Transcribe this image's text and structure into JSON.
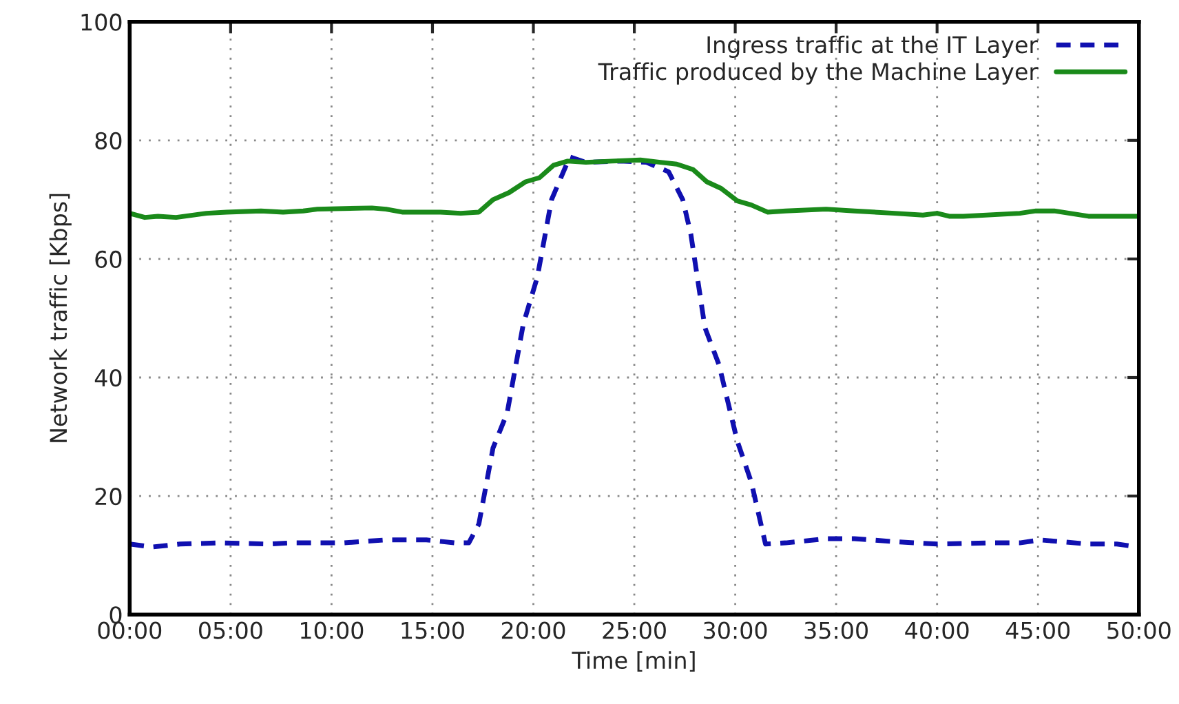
{
  "chart_data": {
    "type": "line",
    "xlabel": "Time [min]",
    "ylabel": "Network traffic [Kbps]",
    "xlim": [
      0,
      50
    ],
    "ylim": [
      0,
      100
    ],
    "xticks": [
      {
        "value": 0,
        "label": "00:00"
      },
      {
        "value": 5,
        "label": "05:00"
      },
      {
        "value": 10,
        "label": "10:00"
      },
      {
        "value": 15,
        "label": "15:00"
      },
      {
        "value": 20,
        "label": "20:00"
      },
      {
        "value": 25,
        "label": "25:00"
      },
      {
        "value": 30,
        "label": "30:00"
      },
      {
        "value": 35,
        "label": "35:00"
      },
      {
        "value": 40,
        "label": "40:00"
      },
      {
        "value": 45,
        "label": "45:00"
      },
      {
        "value": 50,
        "label": "50:00"
      }
    ],
    "yticks": [
      0,
      20,
      40,
      60,
      80,
      100
    ],
    "grid": true,
    "legend": "top right",
    "marker": "none",
    "series": [
      {
        "name": "Ingress traffic at the IT Layer",
        "color": "#1010b0",
        "line_style": "dashed",
        "x": [
          0,
          1.1,
          2.5,
          4.5,
          6.9,
          8,
          10.6,
          12.7,
          14.7,
          16.1,
          16.8,
          17.3,
          18,
          18.7,
          19.5,
          20.2,
          20.9,
          21.8,
          22.6,
          24.3,
          25.6,
          26.7,
          27.4,
          27.8,
          28.5,
          29.2,
          30.1,
          30.8,
          31.5,
          32.5,
          34.5,
          35.9,
          37.9,
          40,
          42.7,
          44.1,
          45.1,
          47.5,
          48.9,
          50
        ],
        "values": [
          11.9,
          11.4,
          11.9,
          12.1,
          11.9,
          12.1,
          12.1,
          12.6,
          12.6,
          12.1,
          12.1,
          15.3,
          28.1,
          34,
          49,
          57,
          70,
          77.2,
          76.3,
          76.5,
          76.3,
          74.7,
          70,
          64.2,
          48.4,
          42.1,
          29.3,
          22.3,
          11.9,
          12.1,
          12.8,
          12.8,
          12.3,
          11.9,
          12.1,
          12.1,
          12.6,
          11.9,
          11.9,
          11.4
        ]
      },
      {
        "name": "Traffic produced by the Machine Layer",
        "color": "#1a8a1a",
        "line_style": "solid",
        "x": [
          0,
          0.75,
          1.4,
          2.3,
          3.8,
          4.8,
          6.5,
          7.6,
          8.6,
          9.3,
          12,
          12.7,
          13.5,
          15.4,
          16.4,
          17.3,
          18,
          18.8,
          19.6,
          20.3,
          21,
          21.7,
          22.6,
          23.9,
          25.3,
          26.3,
          27.1,
          27.9,
          28.6,
          29.3,
          30.1,
          30.8,
          31.6,
          32.5,
          34.5,
          35.9,
          37.9,
          39.3,
          40,
          40.6,
          41.3,
          44.1,
          44.9,
          45.8,
          47.5,
          50
        ],
        "values": [
          67.7,
          67,
          67.2,
          67,
          67.7,
          67.9,
          68.1,
          67.9,
          68.1,
          68.4,
          68.6,
          68.4,
          67.9,
          67.9,
          67.7,
          67.9,
          70,
          71.2,
          73,
          73.7,
          75.8,
          76.5,
          76.3,
          76.5,
          76.7,
          76.3,
          76,
          75.1,
          73,
          71.9,
          69.8,
          69.1,
          67.9,
          68.1,
          68.4,
          68.1,
          67.7,
          67.4,
          67.7,
          67.2,
          67.2,
          67.7,
          68.1,
          68.1,
          67.2,
          67.2
        ]
      }
    ]
  }
}
